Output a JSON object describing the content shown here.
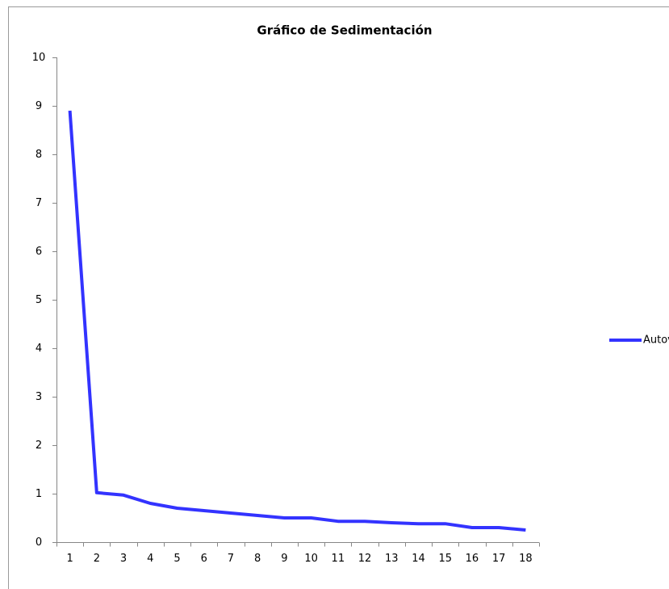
{
  "chart_data": {
    "type": "line",
    "title": "Gráfico de Sedimentación",
    "categories": [
      "1",
      "2",
      "3",
      "4",
      "5",
      "6",
      "7",
      "8",
      "9",
      "10",
      "11",
      "12",
      "13",
      "14",
      "15",
      "16",
      "17",
      "18"
    ],
    "series": [
      {
        "name": "Autovalor",
        "color": "#3333ff",
        "values": [
          8.9,
          1.02,
          0.97,
          0.8,
          0.7,
          0.65,
          0.6,
          0.55,
          0.5,
          0.5,
          0.43,
          0.43,
          0.4,
          0.38,
          0.38,
          0.3,
          0.3,
          0.25
        ]
      }
    ],
    "ylim": [
      0,
      10
    ],
    "yticks": [
      0,
      1,
      2,
      3,
      4,
      5,
      6,
      7,
      8,
      9,
      10
    ],
    "grid": false,
    "legend": "right"
  }
}
